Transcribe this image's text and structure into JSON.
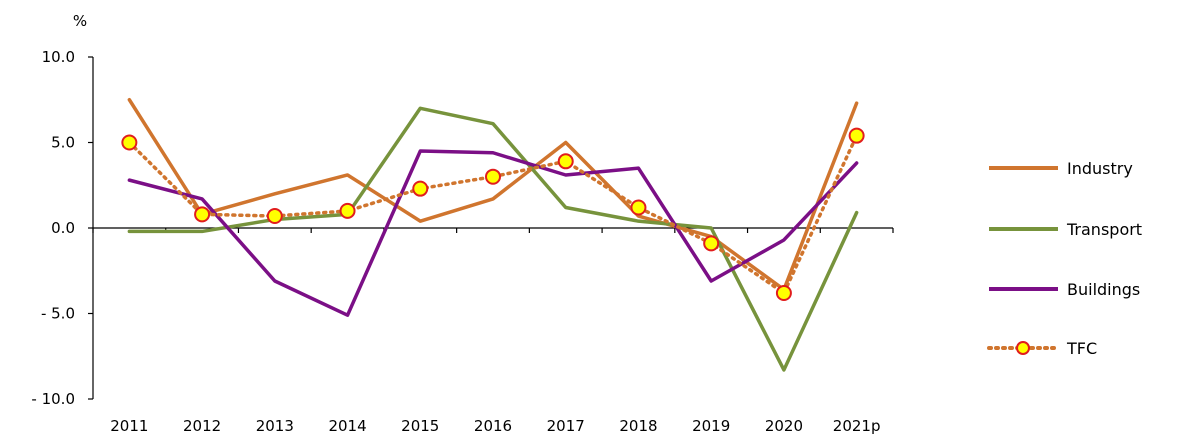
{
  "chart_data": {
    "type": "line",
    "categories": [
      "2011",
      "2012",
      "2013",
      "2014",
      "2015",
      "2016",
      "2017",
      "2018",
      "2019",
      "2020",
      "2021p"
    ],
    "ylabel": "%",
    "ylim": [
      -10.0,
      10.0
    ],
    "yticks": [
      10.0,
      5.0,
      0.0,
      -5.0,
      -10.0
    ],
    "ytick_labels": [
      "10.0",
      "5.0",
      "0.0",
      "- 5.0",
      "- 10.0"
    ],
    "grid": false,
    "legend_position": "right",
    "series": [
      {
        "name": "Industry",
        "color": "#d0752e",
        "style": "solid",
        "values": [
          7.5,
          0.8,
          2.0,
          3.1,
          0.4,
          1.7,
          5.0,
          0.7,
          -0.5,
          -3.6,
          7.3
        ]
      },
      {
        "name": "Transport",
        "color": "#77933c",
        "style": "solid",
        "values": [
          -0.2,
          -0.2,
          0.5,
          0.8,
          7.0,
          6.1,
          1.2,
          0.4,
          0.0,
          -8.3,
          0.9
        ]
      },
      {
        "name": "Buildings",
        "color": "#7b0f86",
        "style": "solid",
        "values": [
          2.8,
          1.7,
          -3.1,
          -5.1,
          4.5,
          4.4,
          3.1,
          3.5,
          -3.1,
          -0.7,
          3.8
        ]
      },
      {
        "name": "TFC",
        "color": "#d0752e",
        "style": "dotted",
        "marker_fill": "#ffff00",
        "marker_edge": "#e11d1d",
        "values": [
          5.0,
          0.8,
          0.7,
          1.0,
          2.3,
          3.0,
          3.9,
          1.2,
          -0.9,
          -3.8,
          5.4
        ]
      }
    ]
  }
}
